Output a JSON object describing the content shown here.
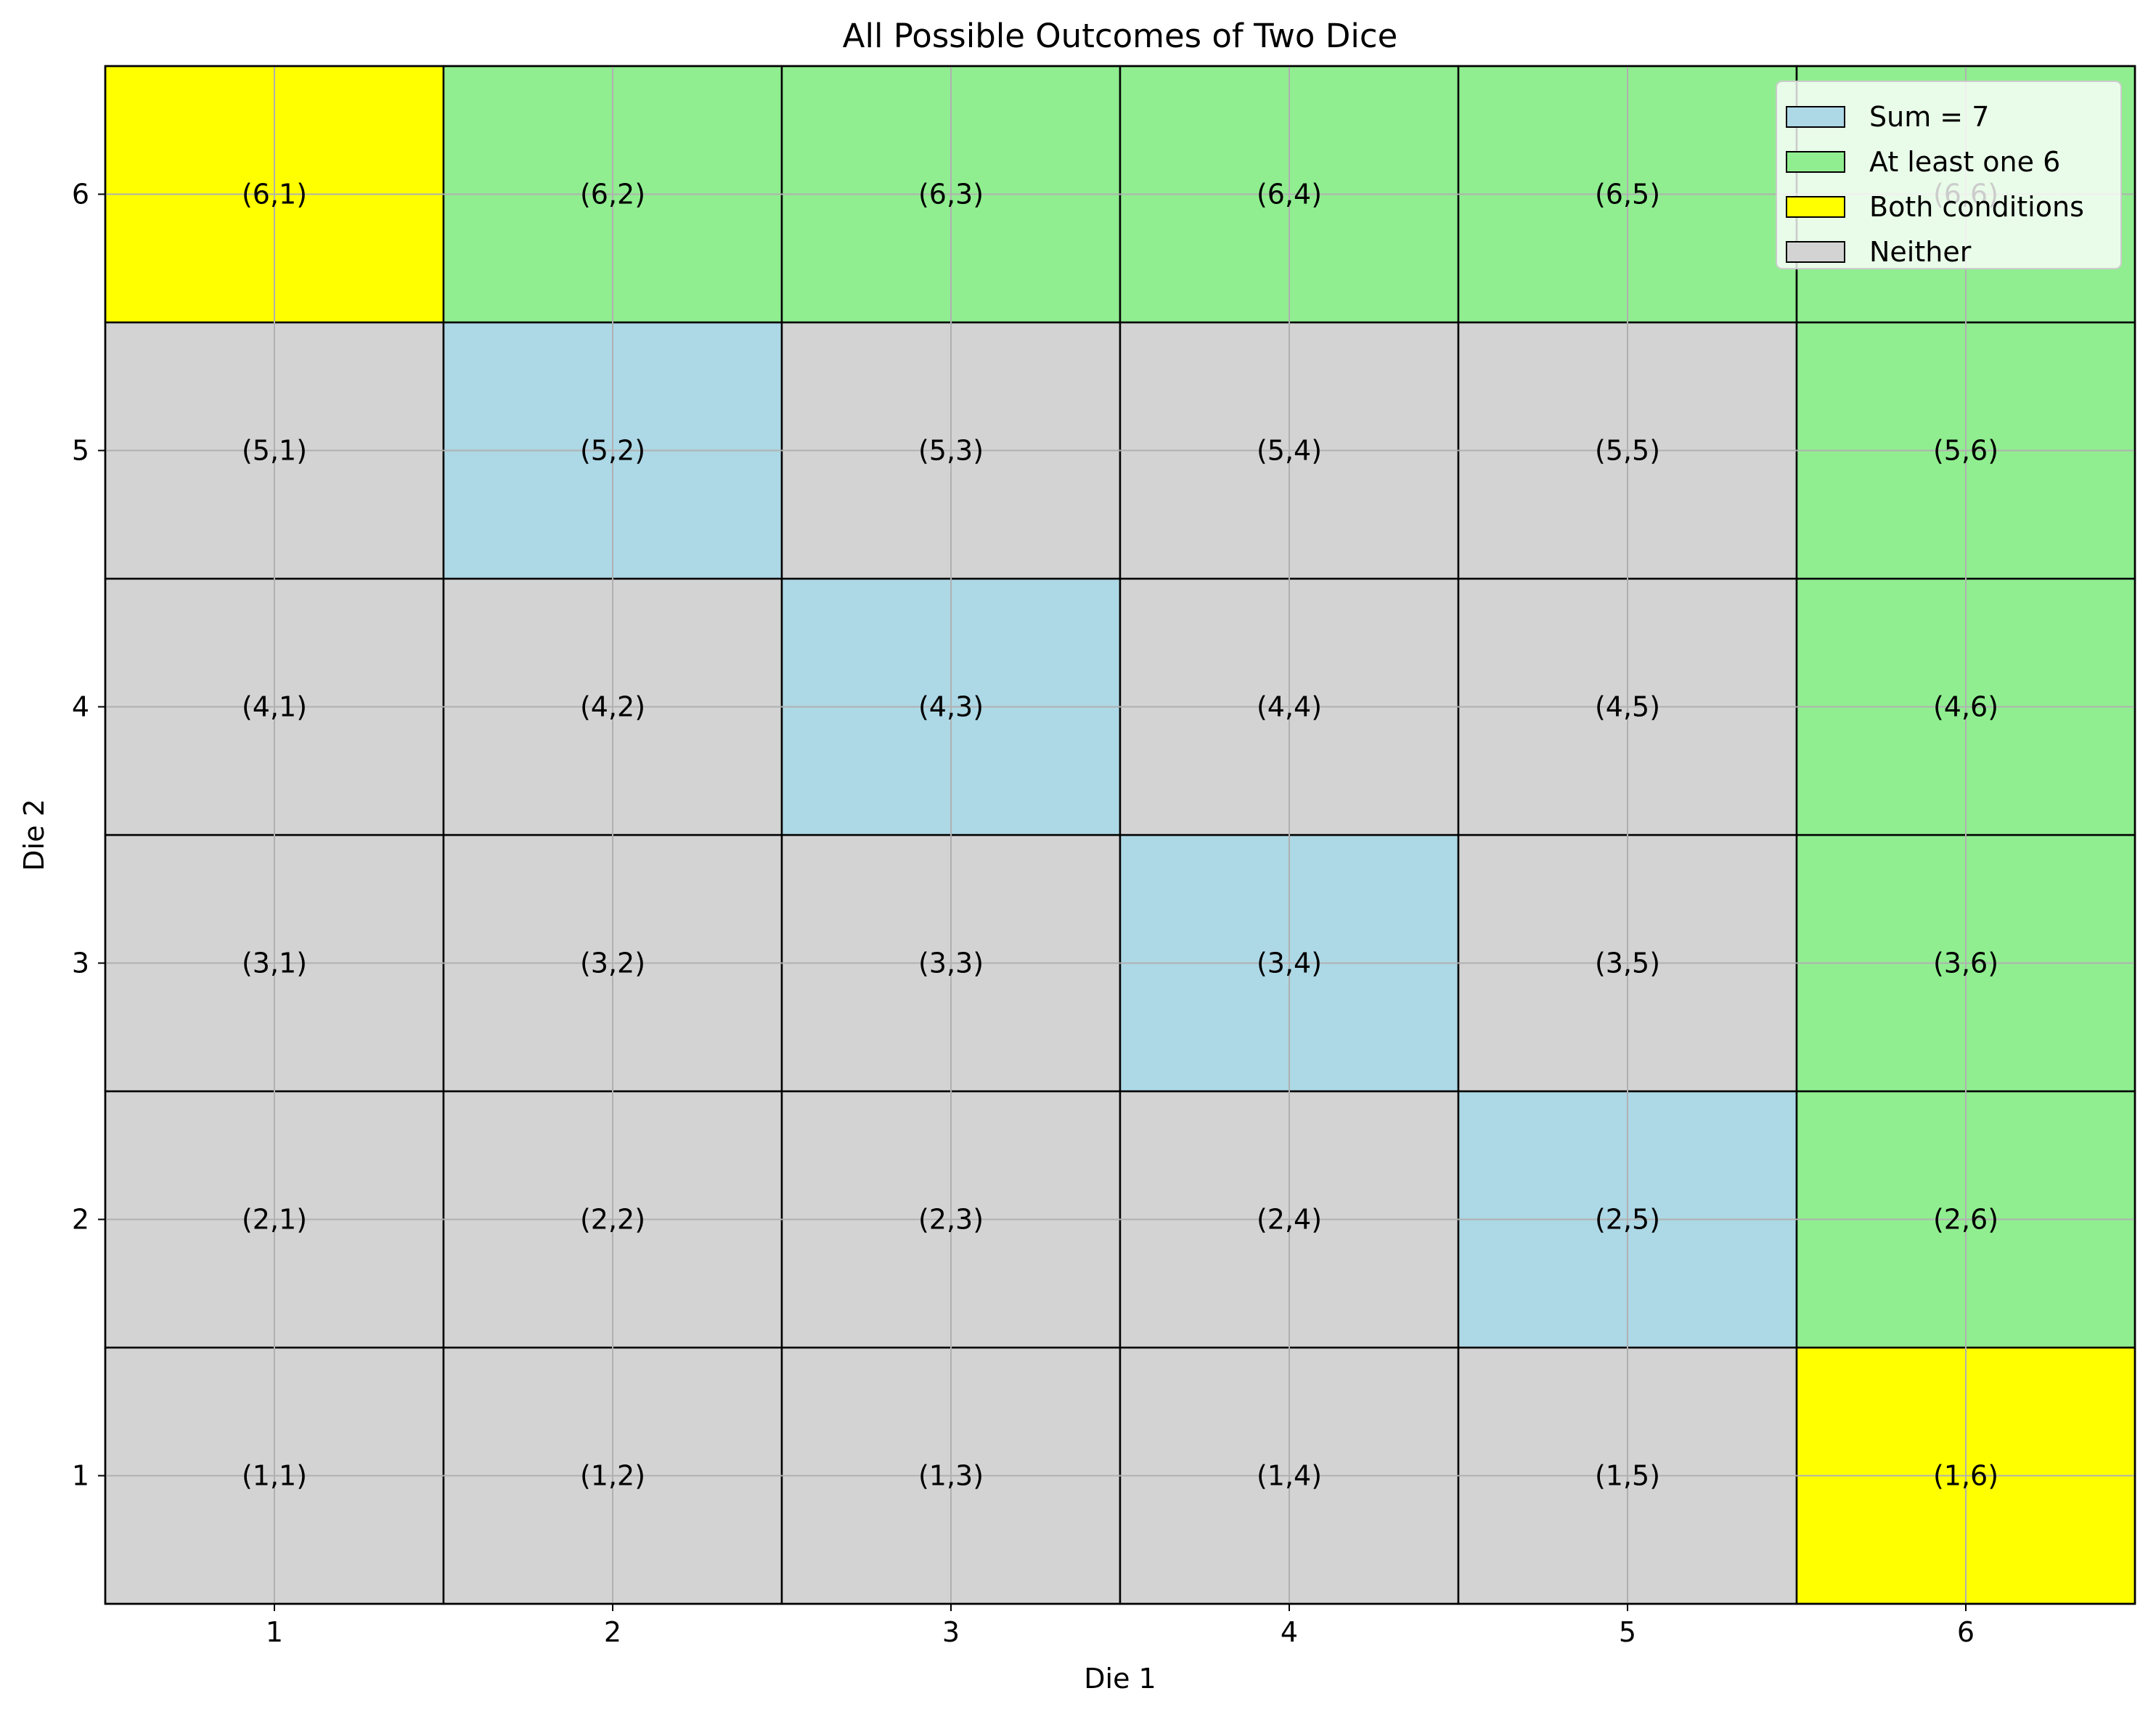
{
  "chart_data": {
    "type": "heatmap",
    "title": "All Possible Outcomes of Two Dice",
    "xlabel": "Die 1",
    "ylabel": "Die 2",
    "x_ticks": [
      "1",
      "2",
      "3",
      "4",
      "5",
      "6"
    ],
    "y_ticks": [
      "1",
      "2",
      "3",
      "4",
      "5",
      "6"
    ],
    "xlim": [
      0.5,
      6.5
    ],
    "ylim": [
      0.5,
      6.5
    ],
    "grid": true,
    "legend_position": "top-right",
    "categories": {
      "sum7": {
        "label": "Sum = 7",
        "color": "#add8e6"
      },
      "six": {
        "label": "At least one 6",
        "color": "#90ee90"
      },
      "both": {
        "label": "Both conditions",
        "color": "#ffff00"
      },
      "neither": {
        "label": "Neither",
        "color": "#d3d3d3"
      }
    },
    "legend_order": [
      "sum7",
      "six",
      "both",
      "neither"
    ],
    "cells": [
      {
        "x": 1,
        "y": 1,
        "label": "(1,1)",
        "category": "neither"
      },
      {
        "x": 2,
        "y": 1,
        "label": "(1,2)",
        "category": "neither"
      },
      {
        "x": 3,
        "y": 1,
        "label": "(1,3)",
        "category": "neither"
      },
      {
        "x": 4,
        "y": 1,
        "label": "(1,4)",
        "category": "neither"
      },
      {
        "x": 5,
        "y": 1,
        "label": "(1,5)",
        "category": "neither"
      },
      {
        "x": 6,
        "y": 1,
        "label": "(1,6)",
        "category": "both"
      },
      {
        "x": 1,
        "y": 2,
        "label": "(2,1)",
        "category": "neither"
      },
      {
        "x": 2,
        "y": 2,
        "label": "(2,2)",
        "category": "neither"
      },
      {
        "x": 3,
        "y": 2,
        "label": "(2,3)",
        "category": "neither"
      },
      {
        "x": 4,
        "y": 2,
        "label": "(2,4)",
        "category": "neither"
      },
      {
        "x": 5,
        "y": 2,
        "label": "(2,5)",
        "category": "sum7"
      },
      {
        "x": 6,
        "y": 2,
        "label": "(2,6)",
        "category": "six"
      },
      {
        "x": 1,
        "y": 3,
        "label": "(3,1)",
        "category": "neither"
      },
      {
        "x": 2,
        "y": 3,
        "label": "(3,2)",
        "category": "neither"
      },
      {
        "x": 3,
        "y": 3,
        "label": "(3,3)",
        "category": "neither"
      },
      {
        "x": 4,
        "y": 3,
        "label": "(3,4)",
        "category": "sum7"
      },
      {
        "x": 5,
        "y": 3,
        "label": "(3,5)",
        "category": "neither"
      },
      {
        "x": 6,
        "y": 3,
        "label": "(3,6)",
        "category": "six"
      },
      {
        "x": 1,
        "y": 4,
        "label": "(4,1)",
        "category": "neither"
      },
      {
        "x": 2,
        "y": 4,
        "label": "(4,2)",
        "category": "neither"
      },
      {
        "x": 3,
        "y": 4,
        "label": "(4,3)",
        "category": "sum7"
      },
      {
        "x": 4,
        "y": 4,
        "label": "(4,4)",
        "category": "neither"
      },
      {
        "x": 5,
        "y": 4,
        "label": "(4,5)",
        "category": "neither"
      },
      {
        "x": 6,
        "y": 4,
        "label": "(4,6)",
        "category": "six"
      },
      {
        "x": 1,
        "y": 5,
        "label": "(5,1)",
        "category": "neither"
      },
      {
        "x": 2,
        "y": 5,
        "label": "(5,2)",
        "category": "sum7"
      },
      {
        "x": 3,
        "y": 5,
        "label": "(5,3)",
        "category": "neither"
      },
      {
        "x": 4,
        "y": 5,
        "label": "(5,4)",
        "category": "neither"
      },
      {
        "x": 5,
        "y": 5,
        "label": "(5,5)",
        "category": "neither"
      },
      {
        "x": 6,
        "y": 5,
        "label": "(5,6)",
        "category": "six"
      },
      {
        "x": 1,
        "y": 6,
        "label": "(6,1)",
        "category": "both"
      },
      {
        "x": 2,
        "y": 6,
        "label": "(6,2)",
        "category": "six"
      },
      {
        "x": 3,
        "y": 6,
        "label": "(6,3)",
        "category": "six"
      },
      {
        "x": 4,
        "y": 6,
        "label": "(6,4)",
        "category": "six"
      },
      {
        "x": 5,
        "y": 6,
        "label": "(6,5)",
        "category": "six"
      },
      {
        "x": 6,
        "y": 6,
        "label": "(6,6)",
        "category": "six"
      }
    ]
  }
}
